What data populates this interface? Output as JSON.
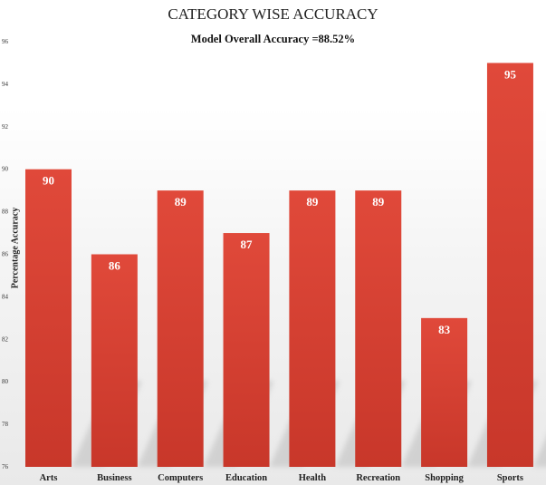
{
  "chart_data": {
    "type": "bar",
    "title": "CATEGORY WISE ACCURACY",
    "subtitle": "Model Overall Accuracy =88.52%",
    "xlabel": "",
    "ylabel": "Percentage Accuracy",
    "categories": [
      "Arts",
      "Business",
      "Computers",
      "Education",
      "Health",
      "Recreation",
      "Shopping",
      "Sports"
    ],
    "values": [
      90,
      86,
      89,
      87,
      89,
      89,
      83,
      95
    ],
    "ylim": [
      76,
      96
    ],
    "yticks": [
      76,
      78,
      80,
      82,
      84,
      86,
      88,
      90,
      92,
      94,
      96
    ],
    "grid": false,
    "legend": "none",
    "bar_color": "#e0493a",
    "bar_color_dark": "#c8372a",
    "label_color": "#ffffff"
  }
}
